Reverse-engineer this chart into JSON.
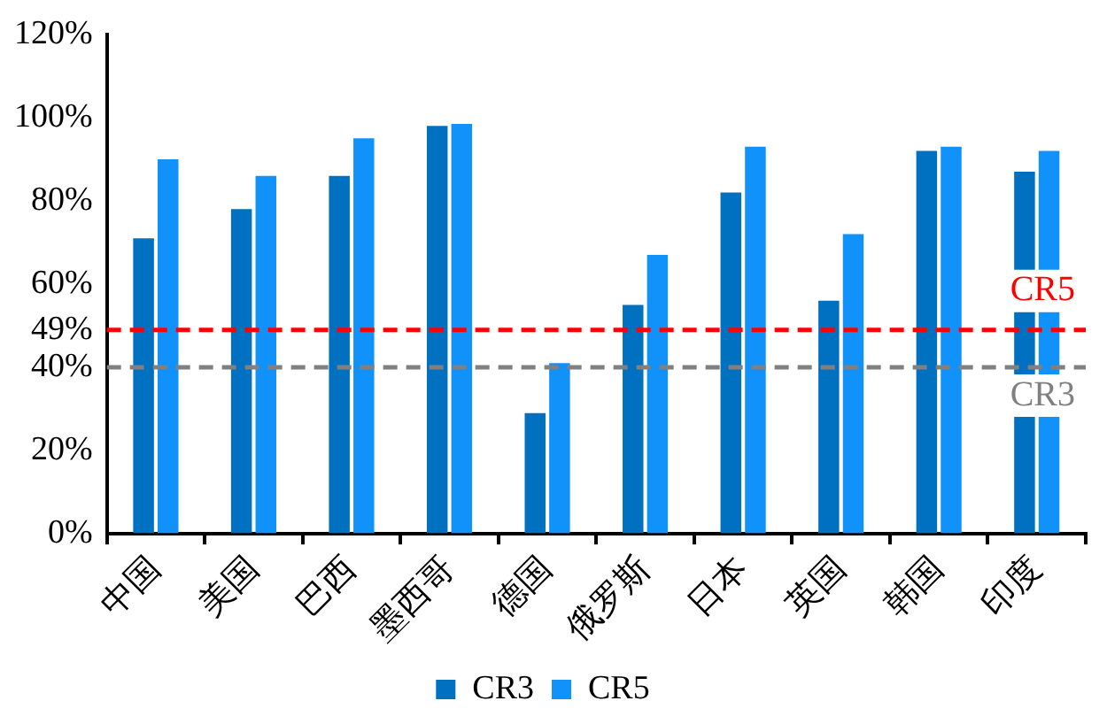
{
  "chart_data": {
    "type": "bar",
    "categories": [
      "中国",
      "美国",
      "巴西",
      "墨西哥",
      "德国",
      "俄罗斯",
      "日本",
      "英国",
      "韩国",
      "印度"
    ],
    "series": [
      {
        "name": "CR3",
        "color": "#0070c0",
        "values": [
          71,
          78,
          86,
          98,
          29,
          55,
          82,
          56,
          92,
          87
        ]
      },
      {
        "name": "CR5",
        "color": "#1192fa",
        "values": [
          90,
          86,
          95,
          98.5,
          41,
          67,
          93,
          72,
          93,
          92
        ]
      }
    ],
    "ylim": [
      0,
      120
    ],
    "yticks": [
      {
        "value": 0,
        "label": "0%"
      },
      {
        "value": 20,
        "label": "20%"
      },
      {
        "value": 40,
        "label": "40%"
      },
      {
        "value": 49,
        "label": "49%"
      },
      {
        "value": 60,
        "label": "60%"
      },
      {
        "value": 80,
        "label": "80%"
      },
      {
        "value": 100,
        "label": "100%"
      },
      {
        "value": 120,
        "label": "120%"
      }
    ],
    "ref_lines": [
      {
        "axis": "y",
        "value": 49,
        "label": "CR5",
        "color": "#ff0000",
        "line_style": "dashed"
      },
      {
        "axis": "y",
        "value": 40,
        "label": "CR3",
        "color": "#808080",
        "line_style": "dashed"
      }
    ],
    "grid": false,
    "legend": "bottom"
  }
}
